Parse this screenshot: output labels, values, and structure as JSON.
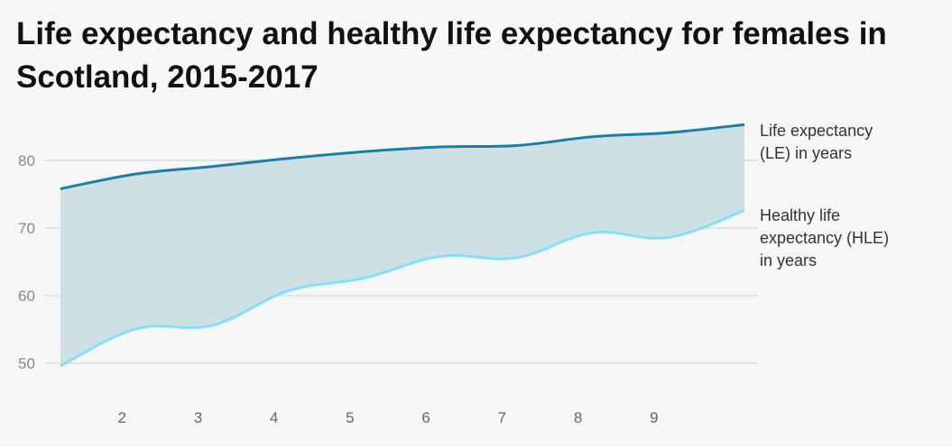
{
  "title": "Life expectancy and healthy life expectancy for females in Scotland, 2015-2017",
  "colors": {
    "le": "#1a7fa8",
    "hle": "#7fe1fb",
    "band": "#cfe0e5",
    "grid": "#cfcfcf",
    "background": "#f7f7f7"
  },
  "chart_data": {
    "type": "line",
    "title": "Life expectancy and healthy life expectancy for females in Scotland, 2015-2017",
    "xlabel": "",
    "ylabel": "",
    "x": [
      1,
      2,
      3,
      4,
      5,
      6,
      7,
      8,
      9,
      10
    ],
    "xticks": [
      "2",
      "3",
      "4",
      "5",
      "6",
      "7",
      "8",
      "9"
    ],
    "ylim": [
      47,
      88
    ],
    "yticks": [
      "50",
      "60",
      "70",
      "80"
    ],
    "grid": true,
    "series": [
      {
        "name": "Life expectancy (LE) in years",
        "label_lines": [
          "Life expectancy",
          "(LE) in years"
        ],
        "values": [
          75.8,
          78.0,
          79.1,
          80.3,
          81.3,
          82.0,
          82.2,
          83.5,
          84.1,
          85.3
        ]
      },
      {
        "name": "Healthy life expectancy (HLE) in years",
        "label_lines": [
          "Healthy life",
          "expectancy (HLE)",
          "in years"
        ],
        "values": [
          49.6,
          55.1,
          55.6,
          60.7,
          62.6,
          65.8,
          65.6,
          69.3,
          68.6,
          72.6
        ]
      }
    ]
  }
}
